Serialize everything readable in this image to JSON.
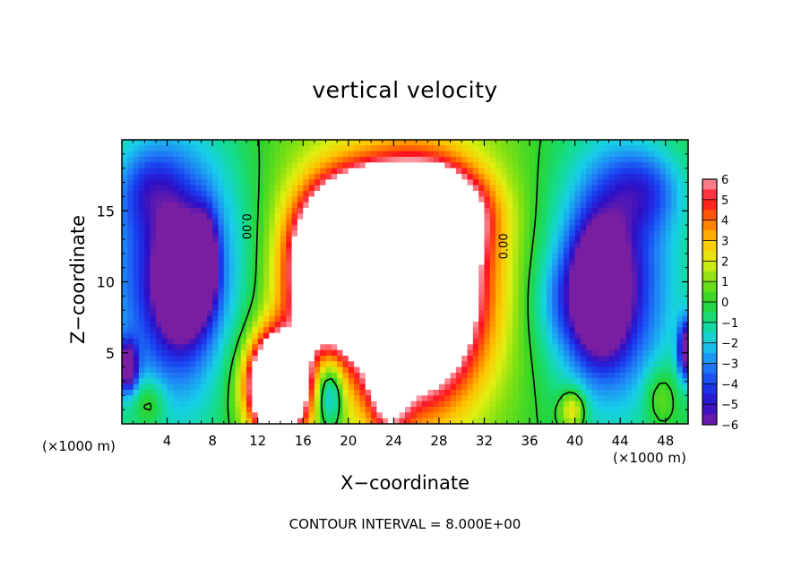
{
  "chart_data": {
    "type": "heatmap",
    "title": "vertical velocity",
    "xlabel": "X−coordinate",
    "ylabel": "Z−coordinate",
    "x_unit_left": "(×1000 m)",
    "x_unit_right": "(×1000 m)",
    "footer": "CONTOUR INTERVAL = 8.000E+00",
    "xlim": [
      0,
      50
    ],
    "ylim": [
      0,
      20
    ],
    "x_ticks": [
      4,
      8,
      12,
      16,
      20,
      24,
      28,
      32,
      36,
      40,
      44,
      48
    ],
    "x_tick_labels": [
      "4",
      "8",
      "12",
      "16",
      "20",
      "24",
      "28",
      "32",
      "36",
      "40",
      "44",
      "48"
    ],
    "y_ticks": [
      5,
      10,
      15
    ],
    "y_tick_labels": [
      "5",
      "10",
      "15"
    ],
    "colorbar": {
      "min": -6,
      "max": 6,
      "tick_labels": [
        "6",
        "5",
        "4",
        "3",
        "2",
        "1",
        "0",
        "−1",
        "−2",
        "−3",
        "−4",
        "−5",
        "−6"
      ],
      "stops": [
        {
          "v": -6,
          "c": "#7a1fa2"
        },
        {
          "v": -5,
          "c": "#2b10c8"
        },
        {
          "v": -4,
          "c": "#1a3ff0"
        },
        {
          "v": -3,
          "c": "#1f86f5"
        },
        {
          "v": -2,
          "c": "#17cfe8"
        },
        {
          "v": -1,
          "c": "#14dc8c"
        },
        {
          "v": 0,
          "c": "#27d42f"
        },
        {
          "v": 1,
          "c": "#7ee012"
        },
        {
          "v": 2,
          "c": "#e0ef10"
        },
        {
          "v": 3,
          "c": "#ffc300"
        },
        {
          "v": 4,
          "c": "#ff6f00"
        },
        {
          "v": 5,
          "c": "#ff1020"
        },
        {
          "v": 6,
          "c": "#f7a0a8"
        }
      ],
      "over_color": "#ffffff"
    },
    "contour_labels": [
      {
        "text": "0.00",
        "x": 10.9,
        "z": 13.9,
        "angle": 90
      },
      {
        "text": "0.00",
        "x": 33.8,
        "z": 12.5,
        "angle": -90
      }
    ],
    "field_features": [
      {
        "cx": 13.7,
        "cz": 2.6,
        "sx": 1.6,
        "sz": 2.2,
        "amp": 13
      },
      {
        "cx": 18.5,
        "cz": 11.0,
        "sx": 2.6,
        "sz": 3.4,
        "amp": 11
      },
      {
        "cx": 26.0,
        "cz": 9.5,
        "sx": 3.6,
        "sz": 5.0,
        "amp": 13
      },
      {
        "cx": 27.5,
        "cz": 14.8,
        "sx": 3.0,
        "sz": 2.0,
        "amp": 8
      },
      {
        "cx": 22.0,
        "cz": 14.5,
        "sx": 2.8,
        "sz": 2.2,
        "amp": 8
      },
      {
        "cx": 23.6,
        "cz": 5.0,
        "sx": 1.2,
        "sz": 4.0,
        "amp": 6
      },
      {
        "cx": 24.0,
        "cz": 10.5,
        "sx": 9.0,
        "sz": 8.0,
        "amp": 3
      },
      {
        "cx": 14.0,
        "cz": 3.2,
        "sx": 3.0,
        "sz": 3.0,
        "amp": 3
      },
      {
        "cx": 5.0,
        "cz": 10.5,
        "sx": 4.5,
        "sz": 7.0,
        "amp": -5.5
      },
      {
        "cx": 5.3,
        "cz": 10.2,
        "sx": 1.4,
        "sz": 2.6,
        "amp": -8
      },
      {
        "cx": 7.3,
        "cz": 11.5,
        "sx": 0.7,
        "sz": 2.0,
        "amp": -6
      },
      {
        "cx": 2.5,
        "cz": 16.5,
        "sx": 2.0,
        "sz": 2.0,
        "amp": -2
      },
      {
        "cx": 0.5,
        "cz": 4.0,
        "sx": 0.6,
        "sz": 1.2,
        "amp": -6
      },
      {
        "cx": 43.0,
        "cz": 10.0,
        "sx": 4.0,
        "sz": 6.5,
        "amp": -5.5
      },
      {
        "cx": 42.3,
        "cz": 9.5,
        "sx": 1.5,
        "sz": 2.8,
        "amp": -8
      },
      {
        "cx": 46.0,
        "cz": 16.5,
        "sx": 2.5,
        "sz": 2.0,
        "amp": -2.5
      },
      {
        "cx": 39.0,
        "cz": 8.5,
        "sx": 2.0,
        "sz": 2.5,
        "amp": -1.5
      },
      {
        "cx": 49.8,
        "cz": 5.2,
        "sx": 0.5,
        "sz": 1.5,
        "amp": -6
      },
      {
        "cx": 18.3,
        "cz": 2.2,
        "sx": 0.9,
        "sz": 1.8,
        "amp": -5
      },
      {
        "cx": 2.4,
        "cz": 1.5,
        "sx": 1.0,
        "sz": 1.2,
        "amp": 2
      },
      {
        "cx": 39.8,
        "cz": 1.0,
        "sx": 0.8,
        "sz": 1.0,
        "amp": 3.5
      },
      {
        "cx": 47.5,
        "cz": 2.0,
        "sx": 1.0,
        "sz": 1.5,
        "amp": 1.8
      }
    ]
  }
}
